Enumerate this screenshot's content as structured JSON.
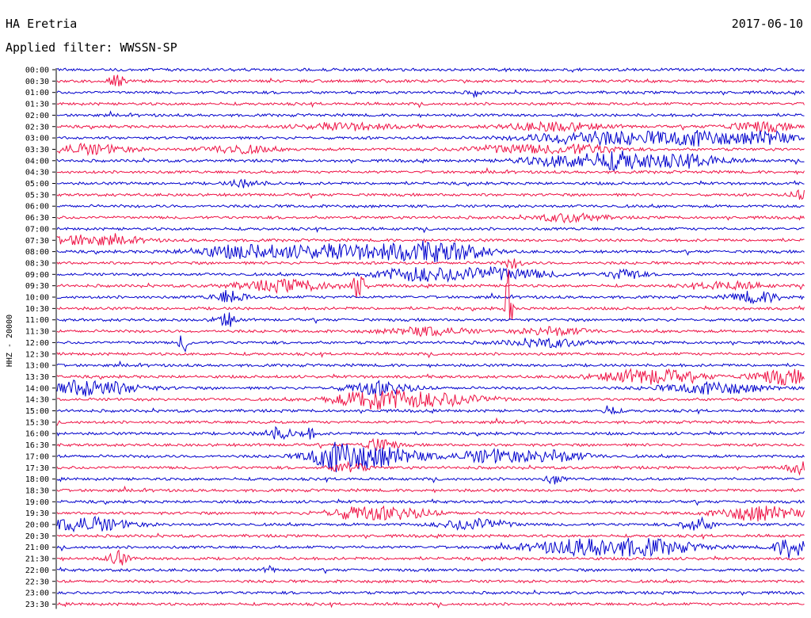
{
  "header": {
    "station": "HA Eretria",
    "date": "2017-06-10",
    "filter": "Applied filter: WWSSN-SP"
  },
  "chart_data": {
    "type": "line",
    "title": "HA Eretria",
    "subtitle": "Applied filter: WWSSN-SP",
    "ylabel": "HHZ - 20000",
    "xlabel": "",
    "row_labels": [
      "00:00",
      "00:30",
      "01:00",
      "01:30",
      "02:00",
      "02:30",
      "03:00",
      "03:30",
      "04:00",
      "04:30",
      "05:00",
      "05:30",
      "06:00",
      "06:30",
      "07:00",
      "07:30",
      "08:00",
      "08:30",
      "09:00",
      "09:30",
      "10:00",
      "10:30",
      "11:00",
      "11:30",
      "12:00",
      "12:30",
      "13:00",
      "13:30",
      "14:00",
      "14:30",
      "15:00",
      "15:30",
      "16:00",
      "16:30",
      "17:00",
      "17:30",
      "18:00",
      "18:30",
      "19:00",
      "19:30",
      "20:00",
      "20:30",
      "21:00",
      "21:30",
      "22:00",
      "22:30",
      "23:00",
      "23:30"
    ],
    "colors": [
      "#0000cc",
      "#ee1144"
    ],
    "grid": false,
    "legend": "none"
  }
}
